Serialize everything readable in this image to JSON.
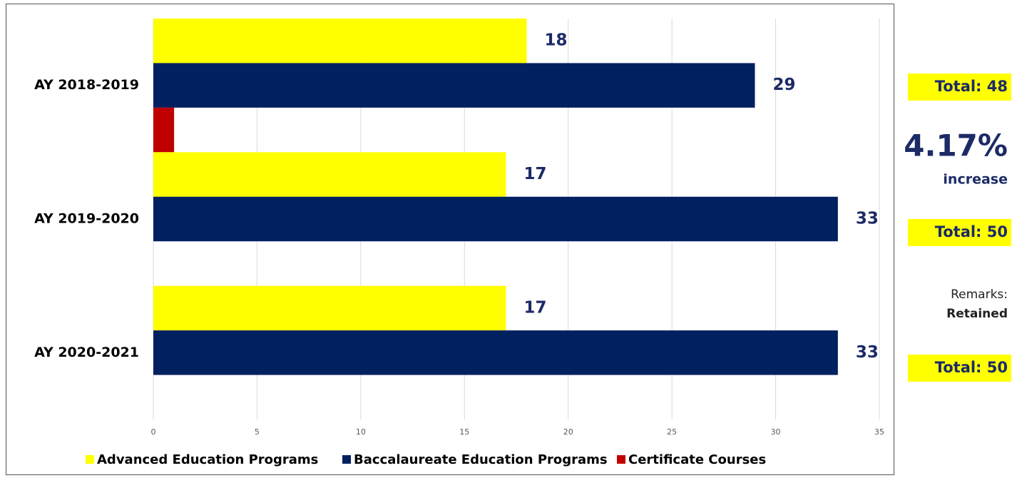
{
  "chart_data": {
    "type": "barh",
    "categories": [
      "AY 2018-2019",
      "AY 2019-2020",
      "AY 2020-2021"
    ],
    "series": [
      {
        "name": "Advanced Education Programs",
        "color": "#ffff00",
        "values": [
          18,
          17,
          17
        ],
        "show_labels": true
      },
      {
        "name": "Baccalaureate Education Programs",
        "color": "#002060",
        "values": [
          29,
          33,
          33
        ],
        "show_labels": true
      },
      {
        "name": "Certificate Courses",
        "color": "#c00000",
        "values": [
          1,
          null,
          null
        ],
        "show_labels": false
      }
    ],
    "xlim": [
      0,
      35
    ],
    "xticks": [
      0,
      5,
      10,
      15,
      20,
      25,
      30,
      35
    ],
    "grid": true,
    "legend": "bottom",
    "annotations": [
      "Total: 48",
      "4.17%",
      "increase",
      "Total: 50",
      "Remarks:",
      "Retained",
      "Total: 50"
    ]
  }
}
